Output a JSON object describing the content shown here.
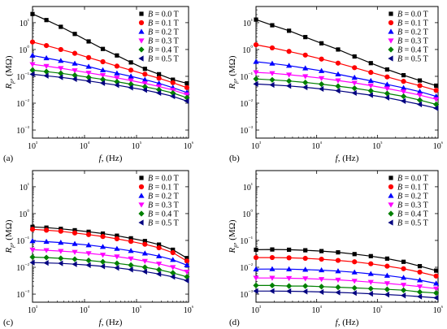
{
  "series_colors": [
    "#000000",
    "#ff0000",
    "#0000ff",
    "#ff00ff",
    "#008000",
    "#000080"
  ],
  "series_markers": [
    "square",
    "circle",
    "triangle-up",
    "triangle-down",
    "diamond",
    "triangle-left"
  ],
  "chart_data": [
    {
      "panel": "(a)",
      "type": "line",
      "xlabel": "f, (Hz)",
      "ylabel": "R_p, (MΩ)",
      "xscale": "log",
      "yscale": "log",
      "xlim": [
        1000,
        1000000
      ],
      "ylim": [
        0.0005,
        40
      ],
      "x_ticks": [
        "10³",
        "10⁴",
        "10⁵",
        "10⁶"
      ],
      "y_ticks": [
        "10⁻³",
        "10⁻²",
        "10⁻¹",
        "10⁰",
        "10¹"
      ],
      "legend_position": "top-right",
      "x": [
        1000,
        1850,
        3500,
        6500,
        12000,
        22500,
        42000,
        78000,
        145000,
        270000,
        500000,
        930000
      ],
      "series": [
        {
          "name": "B = 0.0 T",
          "values": [
            21,
            12.5,
            7,
            3.8,
            2.0,
            1.05,
            0.6,
            0.33,
            0.19,
            0.12,
            0.075,
            0.055
          ]
        },
        {
          "name": "B = 0.1 T",
          "values": [
            1.9,
            1.4,
            1.0,
            0.72,
            0.5,
            0.35,
            0.24,
            0.17,
            0.12,
            0.085,
            0.058,
            0.038
          ]
        },
        {
          "name": "B = 0.2 T",
          "values": [
            0.6,
            0.48,
            0.38,
            0.3,
            0.23,
            0.17,
            0.13,
            0.1,
            0.075,
            0.055,
            0.038,
            0.025
          ]
        },
        {
          "name": "B = 0.3 T",
          "values": [
            0.28,
            0.24,
            0.2,
            0.165,
            0.135,
            0.11,
            0.088,
            0.07,
            0.055,
            0.042,
            0.031,
            0.021
          ]
        },
        {
          "name": "B = 0.4 T",
          "values": [
            0.17,
            0.15,
            0.13,
            0.11,
            0.092,
            0.077,
            0.063,
            0.051,
            0.041,
            0.032,
            0.024,
            0.016
          ]
        },
        {
          "name": "B = 0.5 T",
          "values": [
            0.12,
            0.105,
            0.092,
            0.079,
            0.067,
            0.056,
            0.047,
            0.038,
            0.031,
            0.024,
            0.018,
            0.012
          ]
        }
      ]
    },
    {
      "panel": "(b)",
      "type": "line",
      "xlabel": "f, (Hz)",
      "ylabel": "R_p, (MΩ)",
      "xscale": "log",
      "yscale": "log",
      "xlim": [
        1000,
        1000000
      ],
      "ylim": [
        0.0005,
        40
      ],
      "x_ticks": [
        "10³",
        "10⁴",
        "10⁵",
        "10⁶"
      ],
      "y_ticks": [
        "10⁻³",
        "10⁻²",
        "10⁻¹",
        "10⁰",
        "10¹"
      ],
      "legend_position": "top-right",
      "x": [
        1000,
        1850,
        3500,
        6500,
        12000,
        22500,
        42000,
        78000,
        145000,
        270000,
        500000,
        930000
      ],
      "series": [
        {
          "name": "B = 0.0 T",
          "values": [
            13,
            8,
            5,
            2.9,
            1.7,
            1.0,
            0.55,
            0.31,
            0.18,
            0.11,
            0.07,
            0.045
          ]
        },
        {
          "name": "B = 0.1 T",
          "values": [
            1.5,
            1.15,
            0.85,
            0.62,
            0.44,
            0.31,
            0.21,
            0.14,
            0.095,
            0.065,
            0.045,
            0.03
          ]
        },
        {
          "name": "B = 0.2 T",
          "values": [
            0.35,
            0.3,
            0.25,
            0.2,
            0.16,
            0.12,
            0.09,
            0.068,
            0.05,
            0.037,
            0.027,
            0.018
          ]
        },
        {
          "name": "B = 0.3 T",
          "values": [
            0.14,
            0.13,
            0.115,
            0.1,
            0.085,
            0.07,
            0.057,
            0.045,
            0.035,
            0.027,
            0.02,
            0.014
          ]
        },
        {
          "name": "B = 0.4 T",
          "values": [
            0.08,
            0.074,
            0.067,
            0.059,
            0.051,
            0.043,
            0.036,
            0.029,
            0.023,
            0.018,
            0.013,
            0.009
          ]
        },
        {
          "name": "B = 0.5 T",
          "values": [
            0.052,
            0.048,
            0.044,
            0.039,
            0.034,
            0.029,
            0.024,
            0.02,
            0.016,
            0.012,
            0.009,
            0.0065
          ]
        }
      ]
    },
    {
      "panel": "(c)",
      "type": "line",
      "xlabel": "f, (Hz)",
      "ylabel": "R_p, (MΩ)",
      "xscale": "log",
      "yscale": "log",
      "xlim": [
        1000,
        1000000
      ],
      "ylim": [
        0.0005,
        40
      ],
      "x_ticks": [
        "10³",
        "10⁴",
        "10⁵",
        "10⁶"
      ],
      "y_ticks": [
        "10⁻³",
        "10⁻²",
        "10⁻¹",
        "10⁰",
        "10¹"
      ],
      "legend_position": "top-right",
      "x": [
        1000,
        1850,
        3500,
        6500,
        12000,
        22500,
        42000,
        78000,
        145000,
        270000,
        500000,
        930000
      ],
      "series": [
        {
          "name": "B = 0.0 T",
          "values": [
            0.32,
            0.3,
            0.27,
            0.24,
            0.21,
            0.18,
            0.15,
            0.12,
            0.095,
            0.07,
            0.045,
            0.022
          ]
        },
        {
          "name": "B = 0.1 T",
          "values": [
            0.26,
            0.24,
            0.22,
            0.19,
            0.165,
            0.14,
            0.115,
            0.092,
            0.072,
            0.053,
            0.035,
            0.017
          ]
        },
        {
          "name": "B = 0.2 T",
          "values": [
            0.095,
            0.09,
            0.083,
            0.075,
            0.067,
            0.058,
            0.049,
            0.041,
            0.033,
            0.026,
            0.019,
            0.012
          ]
        },
        {
          "name": "B = 0.3 T",
          "values": [
            0.045,
            0.043,
            0.04,
            0.037,
            0.033,
            0.029,
            0.025,
            0.021,
            0.017,
            0.0135,
            0.01,
            0.0068
          ]
        },
        {
          "name": "B = 0.4 T",
          "values": [
            0.024,
            0.023,
            0.0215,
            0.02,
            0.018,
            0.016,
            0.014,
            0.012,
            0.01,
            0.0081,
            0.0062,
            0.0044
          ]
        },
        {
          "name": "B = 0.5 T",
          "values": [
            0.015,
            0.0145,
            0.014,
            0.013,
            0.012,
            0.0108,
            0.0095,
            0.0082,
            0.0069,
            0.0056,
            0.0044,
            0.0032
          ]
        }
      ]
    },
    {
      "panel": "(d)",
      "type": "line",
      "xlabel": "f, (Hz)",
      "ylabel": "R_p, (MΩ)",
      "xscale": "log",
      "yscale": "log",
      "xlim": [
        1000,
        1000000
      ],
      "ylim": [
        0.0005,
        40
      ],
      "x_ticks": [
        "10³",
        "10⁴",
        "10⁵",
        "10⁶"
      ],
      "y_ticks": [
        "10⁻³",
        "10⁻²",
        "10⁻¹",
        "10⁰",
        "10¹"
      ],
      "legend_position": "top-right",
      "x": [
        1000,
        1850,
        3500,
        6500,
        12000,
        22500,
        42000,
        78000,
        145000,
        270000,
        500000,
        930000
      ],
      "series": [
        {
          "name": "B = 0.0 T",
          "values": [
            0.045,
            0.046,
            0.045,
            0.043,
            0.04,
            0.036,
            0.031,
            0.026,
            0.021,
            0.016,
            0.011,
            0.0075
          ]
        },
        {
          "name": "B = 0.1 T",
          "values": [
            0.023,
            0.023,
            0.0225,
            0.0215,
            0.02,
            0.018,
            0.016,
            0.0135,
            0.011,
            0.0088,
            0.0066,
            0.0047
          ]
        },
        {
          "name": "B = 0.2 T",
          "values": [
            0.0085,
            0.0086,
            0.0085,
            0.0082,
            0.0078,
            0.0072,
            0.0065,
            0.0057,
            0.0049,
            0.0041,
            0.0033,
            0.0025
          ]
        },
        {
          "name": "B = 0.3 T",
          "values": [
            0.004,
            0.004,
            0.0039,
            0.0038,
            0.0036,
            0.0034,
            0.0031,
            0.0028,
            0.0025,
            0.0022,
            0.0019,
            0.0016
          ]
        },
        {
          "name": "B = 0.4 T",
          "values": [
            0.0021,
            0.0021,
            0.002,
            0.002,
            0.0019,
            0.0018,
            0.0017,
            0.0016,
            0.0015,
            0.0014,
            0.0012,
            0.0011
          ]
        },
        {
          "name": "B = 0.5 T",
          "values": [
            0.0013,
            0.0013,
            0.00128,
            0.00125,
            0.0012,
            0.00115,
            0.0011,
            0.00103,
            0.00096,
            0.00089,
            0.00081,
            0.00073
          ]
        }
      ]
    }
  ]
}
